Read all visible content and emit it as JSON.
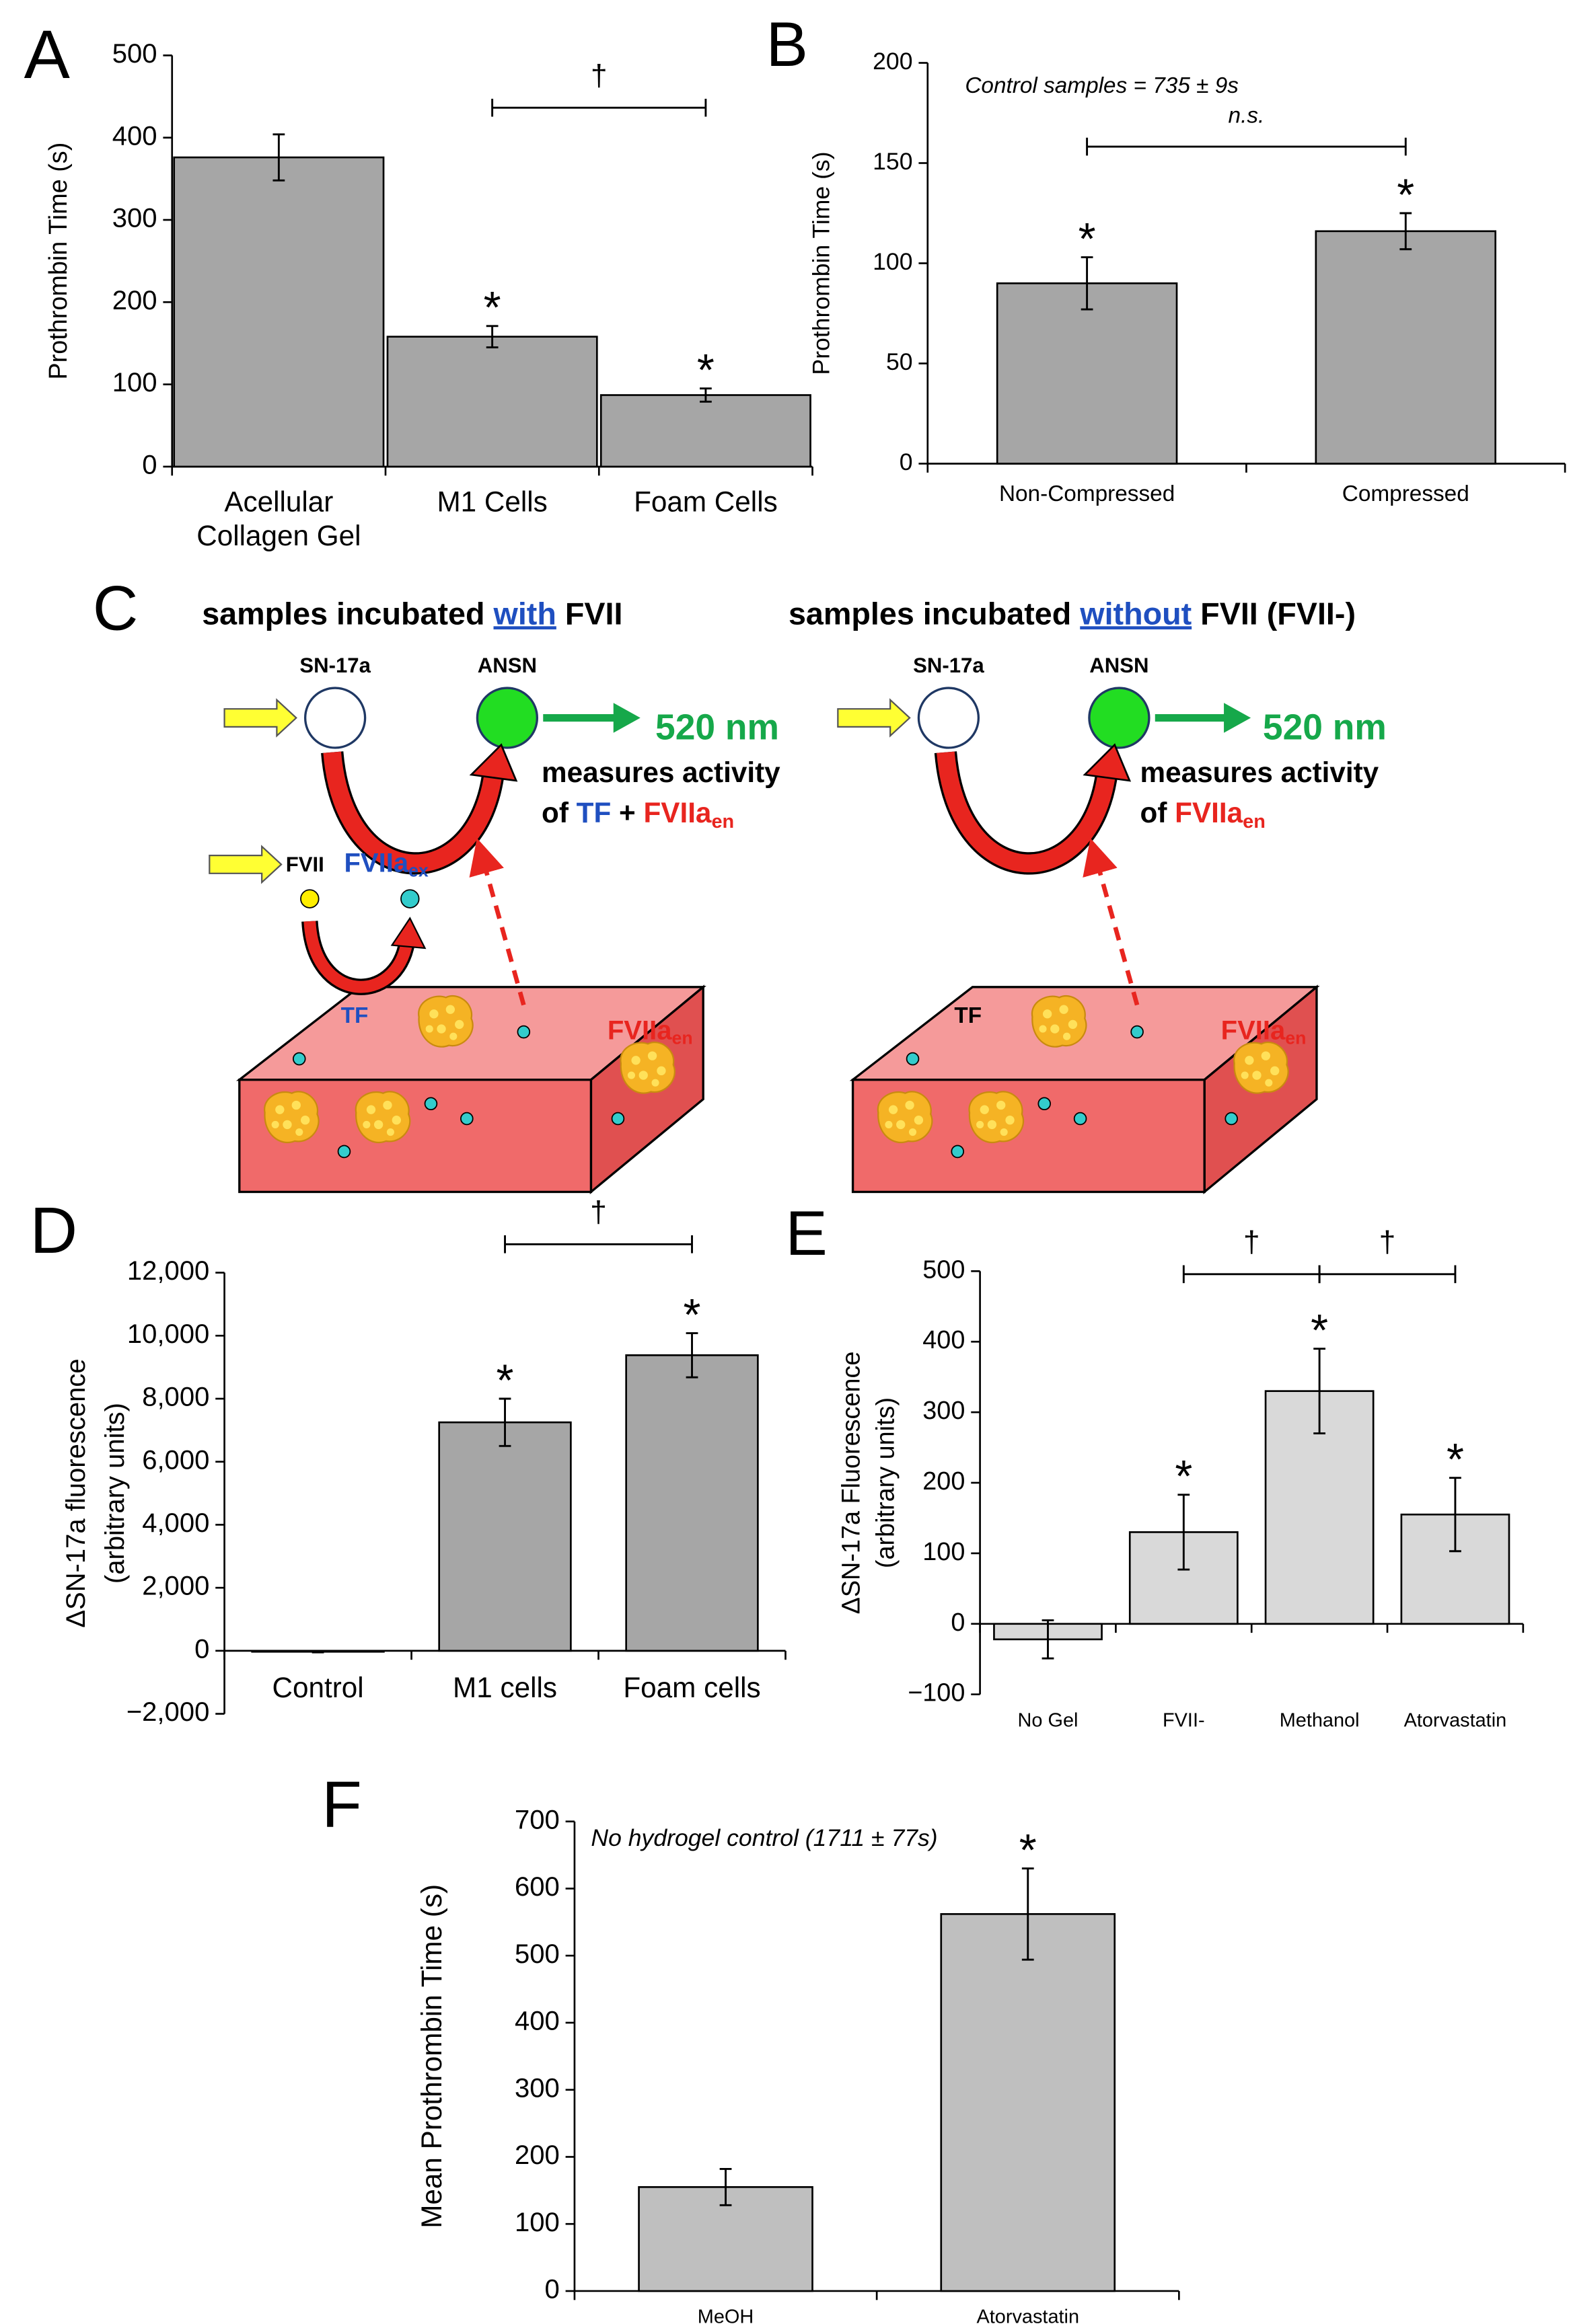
{
  "chart_data": [
    {
      "type": "bar",
      "panel": "A",
      "ylabel": "Prothrombin Time (s)",
      "categories": [
        "Acellular Collagen Gel",
        "M1 Cells",
        "Foam Cells"
      ],
      "values": [
        376,
        158,
        87
      ],
      "errors": [
        28,
        13,
        8
      ],
      "color": "#a6a6a6",
      "ylim": [
        0,
        500
      ],
      "yticks": [
        0,
        100,
        200,
        300,
        400,
        500
      ],
      "annotations": [
        {
          "text": "*",
          "category": "M1 Cells"
        },
        {
          "text": "*",
          "category": "Foam Cells"
        }
      ],
      "brackets": [
        {
          "text": "†",
          "from": "M1 Cells",
          "to": "Foam Cells"
        }
      ]
    },
    {
      "type": "bar",
      "panel": "B",
      "ylabel": "Prothrombin Time (s)",
      "subtitle": "Control samples = 735 ± 9s",
      "categories": [
        "Non-Compressed",
        "Compressed"
      ],
      "values": [
        90,
        116
      ],
      "errors": [
        13,
        9
      ],
      "color": "#a6a6a6",
      "ylim": [
        0,
        200
      ],
      "yticks": [
        0,
        50,
        100,
        150,
        200
      ],
      "annotations": [
        {
          "text": "*",
          "category": "Non-Compressed"
        },
        {
          "text": "*",
          "category": "Compressed"
        }
      ],
      "brackets": [
        {
          "text": "n.s.",
          "from": "Non-Compressed",
          "to": "Compressed"
        }
      ]
    },
    {
      "type": "bar",
      "panel": "D",
      "ylabel": [
        "ΔSN-17a fluorescence",
        "(arbitrary units)"
      ],
      "categories": [
        "Control",
        "M1 cells",
        "Foam cells"
      ],
      "values": [
        -30,
        7250,
        9380
      ],
      "errors": [
        20,
        750,
        700
      ],
      "color": "#a6a6a6",
      "ylim": [
        -2000,
        12000
      ],
      "yticks": [
        {
          "value": -2000,
          "label": "−2,000"
        },
        0,
        {
          "value": 2000,
          "label": "2,000"
        },
        {
          "value": 4000,
          "label": "4,000"
        },
        {
          "value": 6000,
          "label": "6,000"
        },
        {
          "value": 8000,
          "label": "8,000"
        },
        {
          "value": 10000,
          "label": "10,000"
        },
        {
          "value": 12000,
          "label": "12,000"
        }
      ],
      "annotations": [
        {
          "text": "*",
          "category": "M1 cells"
        },
        {
          "text": "*",
          "category": "Foam cells"
        }
      ],
      "brackets": [
        {
          "text": "†",
          "from": "M1 cells",
          "to": "Foam cells"
        }
      ]
    },
    {
      "type": "bar",
      "panel": "E",
      "ylabel": [
        "ΔSN-17a Fluorescence",
        "(arbitrary units)"
      ],
      "categories": [
        "No Gel",
        "FVII-",
        "Methanol",
        "Atorvastatin"
      ],
      "values": [
        -22,
        130,
        330,
        155
      ],
      "errors": [
        27,
        53,
        60,
        52
      ],
      "color": "#d9d9d9",
      "ylim": [
        -100,
        500
      ],
      "yticks": [
        {
          "value": -100,
          "label": "−100"
        },
        0,
        100,
        200,
        300,
        400,
        500
      ],
      "annotations": [
        {
          "text": "*",
          "category": "FVII-"
        },
        {
          "text": "*",
          "category": "Methanol"
        },
        {
          "text": "*",
          "category": "Atorvastatin"
        }
      ],
      "brackets": [
        {
          "text": "†",
          "from": "FVII-",
          "to": "Methanol"
        },
        {
          "text": "†",
          "from": "Methanol",
          "to": "Atorvastatin"
        }
      ]
    },
    {
      "type": "bar",
      "panel": "F",
      "ylabel": "Mean Prothrombin Time (s)",
      "subtitle": "No hydrogel control (1711 ± 77s)",
      "categories": [
        "MeOH",
        "Atorvastatin"
      ],
      "values": [
        155,
        562
      ],
      "errors": [
        27,
        68
      ],
      "color": "#bfbfbf",
      "ylim": [
        0,
        700
      ],
      "yticks": [
        0,
        100,
        200,
        300,
        400,
        500,
        600,
        700
      ],
      "annotations": [
        {
          "text": "*",
          "category": "Atorvastatin"
        }
      ]
    }
  ],
  "diagram": {
    "panel": "C",
    "left": {
      "title": [
        "samples incubated",
        "with",
        "FVII"
      ],
      "substrate": "SN-17a",
      "product": "ANSN",
      "emission": "520 nm",
      "readout": [
        "measures activity",
        "of",
        "TF",
        "+",
        "FVIIa",
        "en"
      ],
      "fvii": "FVII",
      "fviia": "FVIIa",
      "ex": "ex",
      "gel_tf": "TF",
      "gel_fviia": "FVIIa",
      "gel_en": "en"
    },
    "right": {
      "title": [
        "samples incubated",
        "without",
        "FVII (FVII-)"
      ],
      "substrate": "SN-17a",
      "product": "ANSN",
      "emission": "520 nm",
      "readout": [
        "measures activity",
        "of",
        "FVIIa",
        "en"
      ],
      "gel_tf": "TF",
      "gel_fviia": "FVIIa",
      "gel_en": "en"
    }
  }
}
